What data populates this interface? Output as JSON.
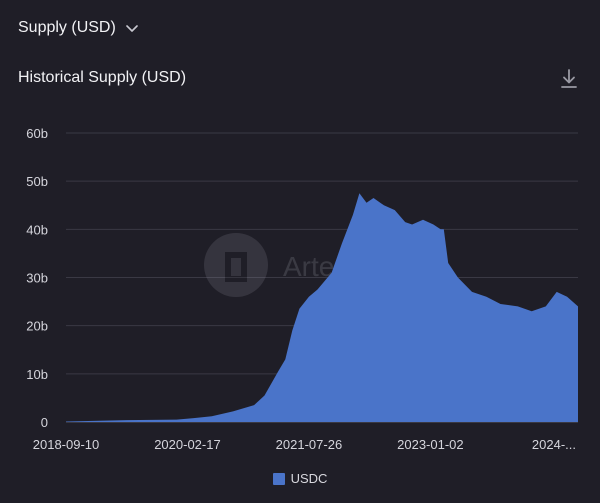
{
  "header": {
    "dropdown_label": "Supply (USD)",
    "dropdown_icon": "chevron-down-icon"
  },
  "panel": {
    "title": "Historical Supply (USD)",
    "download_icon": "download-icon"
  },
  "watermark": {
    "text": "Artemis"
  },
  "colors": {
    "series": "#4a74c9",
    "background": "#1f1e27",
    "grid": "#3a3944"
  },
  "chart_data": {
    "type": "area",
    "title": "Historical Supply (USD)",
    "xlabel": "",
    "ylabel": "",
    "ylim": [
      0,
      60
    ],
    "y_unit": "b",
    "y_ticks": [
      "0",
      "10b",
      "20b",
      "30b",
      "40b",
      "50b",
      "60b"
    ],
    "x_tick_labels": [
      "2018-09-10",
      "2020-02-17",
      "2021-07-26",
      "2023-01-02",
      "2024-..."
    ],
    "x_ticks": [
      "2018-09-10",
      "2020-02-17",
      "2021-07-26",
      "2023-01-02",
      "2024-08-12"
    ],
    "x_range": [
      "2018-09-10",
      "2024-10-01"
    ],
    "grid": true,
    "legend_position": "bottom-center",
    "series": [
      {
        "name": "USDC",
        "color": "#4a74c9",
        "points": [
          [
            "2018-09-10",
            0.1
          ],
          [
            "2019-06-01",
            0.4
          ],
          [
            "2020-01-01",
            0.5
          ],
          [
            "2020-03-15",
            0.8
          ],
          [
            "2020-06-01",
            1.2
          ],
          [
            "2020-09-01",
            2.2
          ],
          [
            "2020-12-01",
            3.5
          ],
          [
            "2021-01-15",
            5.5
          ],
          [
            "2021-03-15",
            10.5
          ],
          [
            "2021-04-15",
            13
          ],
          [
            "2021-05-15",
            19
          ],
          [
            "2021-06-15",
            23.5
          ],
          [
            "2021-07-26",
            26
          ],
          [
            "2021-09-01",
            27.5
          ],
          [
            "2021-11-01",
            31
          ],
          [
            "2021-12-15",
            37
          ],
          [
            "2022-02-01",
            43
          ],
          [
            "2022-03-01",
            47.5
          ],
          [
            "2022-04-01",
            45.5
          ],
          [
            "2022-05-01",
            46.5
          ],
          [
            "2022-06-15",
            45
          ],
          [
            "2022-08-01",
            44
          ],
          [
            "2022-09-15",
            41.5
          ],
          [
            "2022-10-15",
            41
          ],
          [
            "2022-12-01",
            42
          ],
          [
            "2023-01-15",
            41
          ],
          [
            "2023-02-15",
            40
          ],
          [
            "2023-03-01",
            40
          ],
          [
            "2023-03-20",
            33
          ],
          [
            "2023-05-01",
            30
          ],
          [
            "2023-07-01",
            27
          ],
          [
            "2023-09-01",
            26
          ],
          [
            "2023-11-01",
            24.5
          ],
          [
            "2024-01-15",
            24
          ],
          [
            "2024-03-15",
            23
          ],
          [
            "2024-05-15",
            24
          ],
          [
            "2024-07-01",
            27
          ],
          [
            "2024-08-15",
            26
          ],
          [
            "2024-10-01",
            24
          ]
        ]
      }
    ]
  }
}
